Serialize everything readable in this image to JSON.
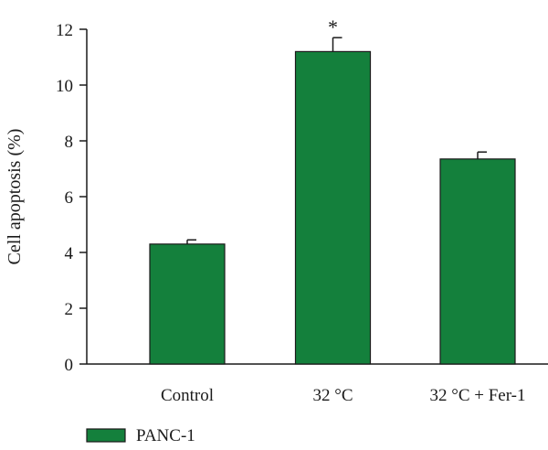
{
  "chart_data": {
    "type": "bar",
    "ylabel": "Cell apoptosis (%)",
    "xlabel": "",
    "ylim": [
      0,
      12
    ],
    "yticks": [
      0,
      2,
      4,
      6,
      8,
      10,
      12
    ],
    "categories": [
      "Control",
      "32 °C",
      "32 °C + Fer-1"
    ],
    "series": [
      {
        "name": "PANC-1",
        "values": [
          4.3,
          11.2,
          7.35
        ],
        "errors": [
          0.15,
          0.5,
          0.25
        ],
        "color": "#14803c"
      }
    ],
    "annotations": [
      "",
      "*",
      ""
    ],
    "legend_position": "bottom-left",
    "grid": false
  }
}
